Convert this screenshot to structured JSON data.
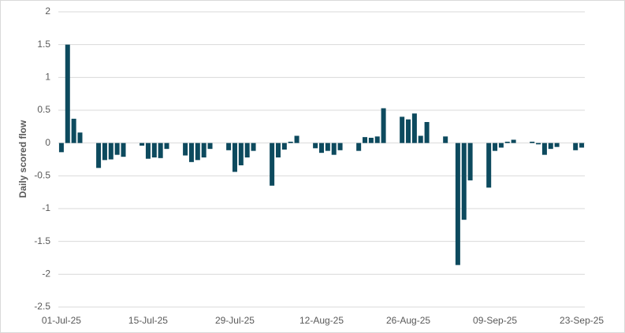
{
  "chart_data": {
    "type": "bar",
    "y_label": "Daily scored flow",
    "color": "#0d4a5e",
    "grid": true,
    "ylim": [
      -2.5,
      2
    ],
    "yticks": [
      -2.5,
      -2,
      -1.5,
      -1,
      -0.5,
      0,
      0.5,
      1,
      1.5,
      2
    ],
    "categories": [
      "01-Jul-25",
      null,
      null,
      null,
      null,
      null,
      null,
      null,
      null,
      null,
      null,
      null,
      null,
      null,
      "15-Jul-25",
      null,
      null,
      null,
      null,
      null,
      null,
      null,
      null,
      null,
      null,
      null,
      null,
      null,
      "29-Jul-25",
      null,
      null,
      null,
      null,
      null,
      null,
      null,
      null,
      null,
      null,
      null,
      null,
      null,
      "12-Aug-25",
      null,
      null,
      null,
      null,
      null,
      null,
      null,
      null,
      null,
      null,
      null,
      null,
      null,
      "26-Aug-25",
      null,
      null,
      null,
      null,
      null,
      null,
      null,
      null,
      null,
      null,
      null,
      null,
      null,
      "09-Sep-25",
      null,
      null,
      null,
      null,
      null,
      null,
      null,
      null,
      null,
      null,
      null,
      null,
      null,
      "23-Sep-25"
    ],
    "values": [
      -0.14,
      1.5,
      0.37,
      0.16,
      null,
      null,
      -0.38,
      -0.26,
      -0.25,
      -0.18,
      -0.21,
      null,
      null,
      -0.04,
      -0.24,
      -0.22,
      -0.23,
      -0.09,
      null,
      null,
      -0.19,
      -0.29,
      -0.26,
      -0.22,
      -0.09,
      null,
      null,
      -0.11,
      -0.44,
      -0.34,
      -0.22,
      -0.12,
      null,
      null,
      -0.65,
      -0.22,
      -0.1,
      0.02,
      0.11,
      null,
      null,
      -0.08,
      -0.15,
      -0.12,
      -0.18,
      -0.11,
      null,
      null,
      -0.12,
      0.09,
      0.08,
      0.1,
      0.53,
      null,
      null,
      0.4,
      0.36,
      0.45,
      0.11,
      0.32,
      null,
      null,
      0.1,
      null,
      -1.86,
      -1.17,
      -0.57,
      null,
      null,
      -0.68,
      -0.12,
      -0.07,
      0.02,
      0.05,
      null,
      null,
      0.02,
      -0.02,
      -0.18,
      -0.09,
      -0.06,
      null,
      null,
      -0.11,
      -0.07
    ]
  }
}
